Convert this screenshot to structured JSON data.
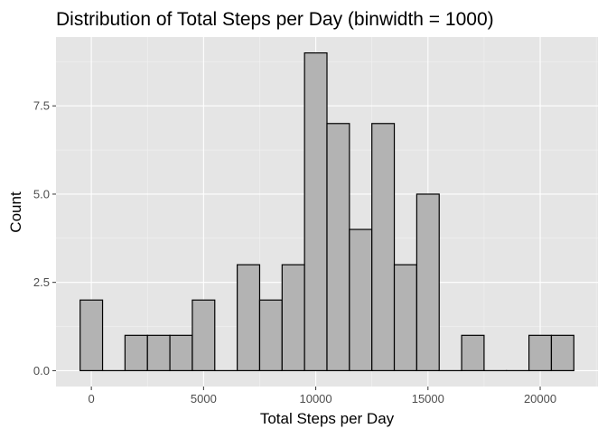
{
  "chart_data": {
    "type": "bar",
    "title": "Distribution of Total Steps per Day (binwidth = 1000)",
    "xlabel": "Total Steps per Day",
    "ylabel": "Count",
    "binwidth": 1000,
    "bins": [
      {
        "center": 0,
        "count": 2
      },
      {
        "center": 1000,
        "count": 0
      },
      {
        "center": 2000,
        "count": 1
      },
      {
        "center": 3000,
        "count": 1
      },
      {
        "center": 4000,
        "count": 1
      },
      {
        "center": 5000,
        "count": 2
      },
      {
        "center": 6000,
        "count": 0
      },
      {
        "center": 7000,
        "count": 3
      },
      {
        "center": 8000,
        "count": 2
      },
      {
        "center": 9000,
        "count": 3
      },
      {
        "center": 10000,
        "count": 9
      },
      {
        "center": 11000,
        "count": 7
      },
      {
        "center": 12000,
        "count": 4
      },
      {
        "center": 13000,
        "count": 7
      },
      {
        "center": 14000,
        "count": 3
      },
      {
        "center": 15000,
        "count": 5
      },
      {
        "center": 16000,
        "count": 0
      },
      {
        "center": 17000,
        "count": 1
      },
      {
        "center": 18000,
        "count": 0
      },
      {
        "center": 19000,
        "count": 0
      },
      {
        "center": 20000,
        "count": 1
      },
      {
        "center": 21000,
        "count": 1
      }
    ],
    "xlim": [
      -1575,
      22575
    ],
    "ylim": [
      -0.45,
      9.45
    ],
    "x_ticks": [
      0,
      5000,
      10000,
      15000,
      20000
    ],
    "x_tick_labels": [
      "0",
      "5000",
      "10000",
      "15000",
      "20000"
    ],
    "y_ticks": [
      0,
      2.5,
      5,
      7.5
    ],
    "y_tick_labels": [
      "0.0",
      "2.5",
      "5.0",
      "7.5"
    ],
    "grid": true,
    "legend": "none",
    "colors": {
      "panel_background": "#e5e5e5",
      "bar_fill": "#b3b3b3",
      "bar_outline": "#000000",
      "grid": "#ffffff"
    }
  }
}
